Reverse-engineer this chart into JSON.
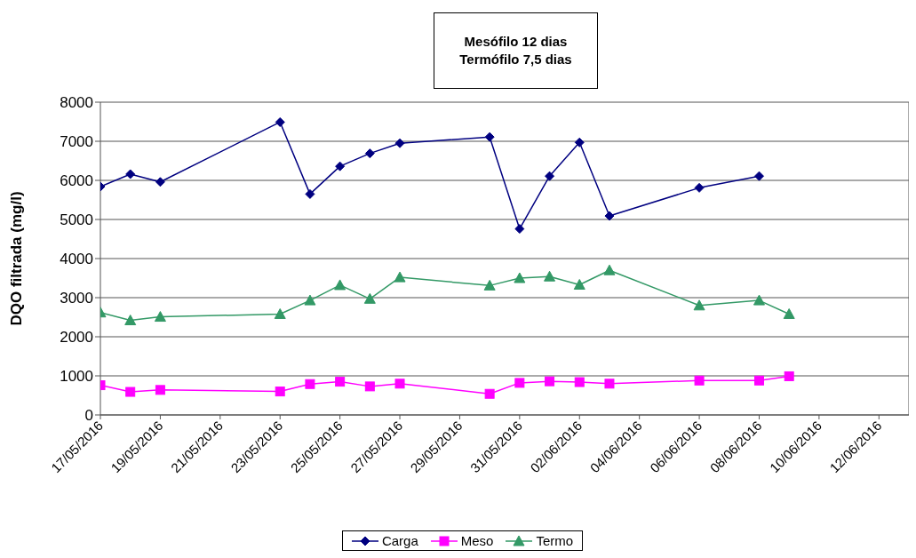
{
  "chart_data": {
    "type": "line",
    "title": "Mesófilo 12 dias\nTermófilo 7,5 dias",
    "ylabel": "DQO filtrada (mg/l)",
    "x": [
      "2016-05-17",
      "2016-05-18",
      "2016-05-19",
      "2016-05-23",
      "2016-05-24",
      "2016-05-25",
      "2016-05-26",
      "2016-05-27",
      "2016-05-30",
      "2016-05-31",
      "2016-06-01",
      "2016-06-02",
      "2016-06-03",
      "2016-06-06",
      "2016-06-08",
      "2016-06-09"
    ],
    "series": [
      {
        "name": "Carga",
        "color": "#000080",
        "marker": "diamond",
        "values": [
          5840,
          6160,
          5960,
          7490,
          5650,
          6360,
          6690,
          6950,
          7110,
          4760,
          6110,
          6970,
          5090,
          5810,
          6110,
          null
        ]
      },
      {
        "name": "Meso",
        "color": "#ff00ff",
        "marker": "square",
        "values": [
          760,
          590,
          640,
          600,
          790,
          850,
          730,
          800,
          540,
          820,
          860,
          840,
          800,
          880,
          880,
          990
        ]
      },
      {
        "name": "Termo",
        "color": "#339966",
        "marker": "triangle",
        "values": [
          2620,
          2420,
          2510,
          2580,
          2930,
          3320,
          2970,
          3520,
          3310,
          3500,
          3540,
          3330,
          3700,
          2800,
          2930,
          2580
        ]
      }
    ],
    "xlim": [
      "2016-05-17",
      "2016-06-13"
    ],
    "xticks": [
      {
        "value": "2016-05-17",
        "label": "17/05/2016"
      },
      {
        "value": "2016-05-19",
        "label": "19/05/2016"
      },
      {
        "value": "2016-05-21",
        "label": "21/05/2016"
      },
      {
        "value": "2016-05-23",
        "label": "23/05/2016"
      },
      {
        "value": "2016-05-25",
        "label": "25/05/2016"
      },
      {
        "value": "2016-05-27",
        "label": "27/05/2016"
      },
      {
        "value": "2016-05-29",
        "label": "29/05/2016"
      },
      {
        "value": "2016-05-31",
        "label": "31/05/2016"
      },
      {
        "value": "2016-06-02",
        "label": "02/06/2016"
      },
      {
        "value": "2016-06-04",
        "label": "04/06/2016"
      },
      {
        "value": "2016-06-06",
        "label": "06/06/2016"
      },
      {
        "value": "2016-06-08",
        "label": "08/06/2016"
      },
      {
        "value": "2016-06-10",
        "label": "10/06/2016"
      },
      {
        "value": "2016-06-12",
        "label": "12/06/2016"
      }
    ],
    "ylim": [
      0,
      8000
    ],
    "yticks": [
      0,
      1000,
      2000,
      3000,
      4000,
      5000,
      6000,
      7000,
      8000
    ],
    "grid": "y",
    "legend": "bottom",
    "line_style": "solid"
  }
}
